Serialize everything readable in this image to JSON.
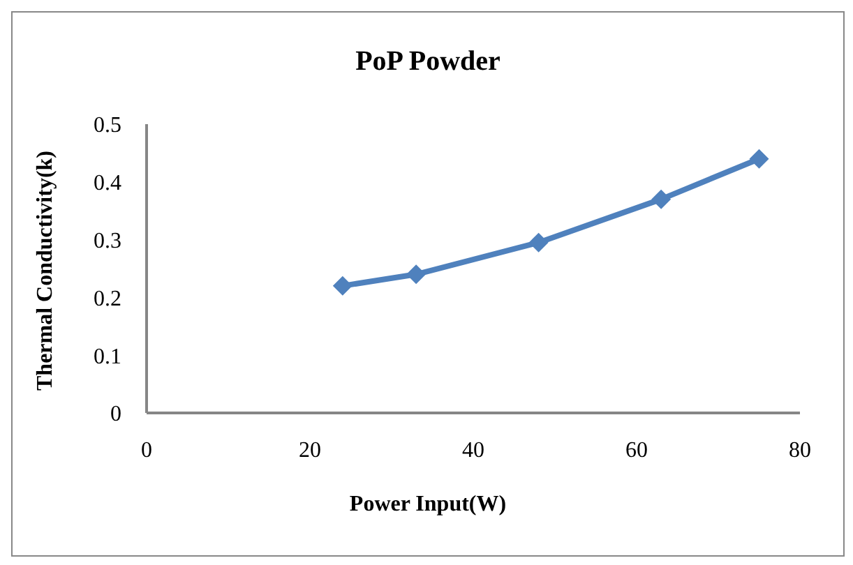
{
  "chart_data": {
    "type": "line",
    "title": "PoP Powder",
    "xlabel": "Power Input(W)",
    "ylabel": "Thermal Conductivity(k)",
    "x": [
      24,
      33,
      48,
      63,
      75
    ],
    "series": [
      {
        "color": "#4f81bd",
        "values": [
          0.22,
          0.24,
          0.295,
          0.37,
          0.44
        ]
      }
    ],
    "xlim": [
      0,
      80
    ],
    "xticks": [
      0,
      20,
      40,
      60,
      80
    ],
    "ylim": [
      0,
      0.5
    ],
    "yticks": [
      0,
      0.1,
      0.2,
      0.3,
      0.4,
      0.5
    ],
    "grid": false,
    "legend": false,
    "marker": "diamond",
    "line_style": "solid"
  }
}
